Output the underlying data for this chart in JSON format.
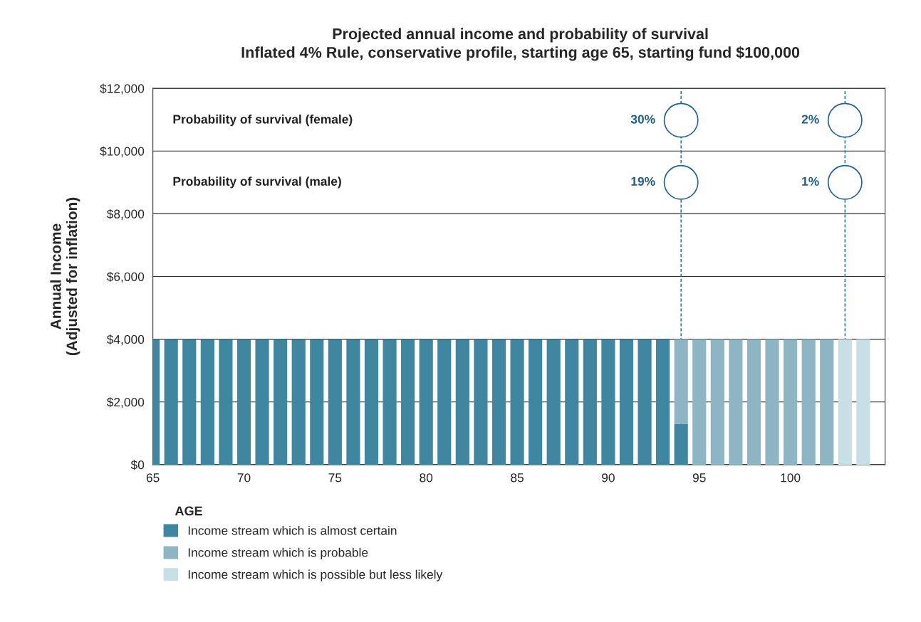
{
  "chart_data": {
    "type": "bar",
    "stacked": true,
    "title": "Projected annual income and probability of survival",
    "subtitle": "Inflated 4% Rule, conservative profile, starting age 65, starting fund $100,000",
    "xlabel": "AGE",
    "ylabel": "Annual Income\n(Adjusted for inflation)",
    "x": [
      65,
      66,
      67,
      68,
      69,
      70,
      71,
      72,
      73,
      74,
      75,
      76,
      77,
      78,
      79,
      80,
      81,
      82,
      83,
      84,
      85,
      86,
      87,
      88,
      89,
      90,
      91,
      92,
      93,
      94,
      95,
      96,
      97,
      98,
      99,
      100,
      101,
      102,
      103,
      104
    ],
    "series": [
      {
        "name": "Income stream which is almost certain",
        "color": "#3f87a0",
        "values": [
          4000,
          4000,
          4000,
          4000,
          4000,
          4000,
          4000,
          4000,
          4000,
          4000,
          4000,
          4000,
          4000,
          4000,
          4000,
          4000,
          4000,
          4000,
          4000,
          4000,
          4000,
          4000,
          4000,
          4000,
          4000,
          4000,
          4000,
          4000,
          4000,
          1300,
          null,
          null,
          null,
          null,
          null,
          null,
          null,
          null,
          null,
          null
        ]
      },
      {
        "name": "Income stream which is probable",
        "color": "#8db5c4",
        "values": [
          null,
          null,
          null,
          null,
          null,
          null,
          null,
          null,
          null,
          null,
          null,
          null,
          null,
          null,
          null,
          null,
          null,
          null,
          null,
          null,
          null,
          null,
          null,
          null,
          null,
          null,
          null,
          null,
          null,
          2700,
          4000,
          4000,
          4000,
          4000,
          4000,
          4000,
          4000,
          4000,
          null,
          null
        ]
      },
      {
        "name": "Income stream which is possible but less likely",
        "color": "#c9dfe6",
        "values": [
          null,
          null,
          null,
          null,
          null,
          null,
          null,
          null,
          null,
          null,
          null,
          null,
          null,
          null,
          null,
          null,
          null,
          null,
          null,
          null,
          null,
          null,
          null,
          null,
          null,
          null,
          null,
          null,
          null,
          null,
          null,
          null,
          null,
          null,
          null,
          null,
          null,
          null,
          4000,
          4000
        ]
      }
    ],
    "xlim": [
      65,
      105.2
    ],
    "xticks": [
      65,
      70,
      75,
      80,
      85,
      90,
      95,
      100
    ],
    "ylim": [
      0,
      12000
    ],
    "yticks": [
      {
        "value": 0,
        "label": "$0"
      },
      {
        "value": 2000,
        "label": "$2,000"
      },
      {
        "value": 4000,
        "label": "$4,000"
      },
      {
        "value": 6000,
        "label": "$6,000"
      },
      {
        "value": 8000,
        "label": "$8,000"
      },
      {
        "value": 10000,
        "label": "$10,000"
      },
      {
        "value": 12000,
        "label": "$12,000"
      }
    ],
    "grid": "y",
    "legend": "bottom",
    "ref_lines": [
      {
        "axis": "x",
        "value": 94,
        "label": null,
        "color": "#1f6391",
        "line_style": "dashed"
      },
      {
        "axis": "x",
        "value": 103,
        "label": null,
        "color": "#1f6391",
        "line_style": "dashed"
      }
    ],
    "annotations": [
      "Probability of survival (female)",
      "Probability of survival (male)",
      "30%",
      "19%",
      "2%",
      "1%"
    ]
  }
}
